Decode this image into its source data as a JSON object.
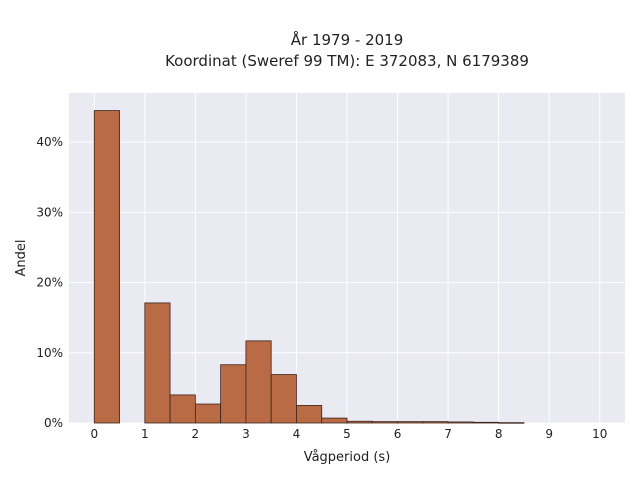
{
  "colors": {
    "plot_background": "#eaeaf2",
    "grid": "#ffffff",
    "bar_fill": "#b86b45",
    "bar_edge": "#3d241a"
  },
  "chart_data": {
    "type": "bar",
    "title_lines": [
      "År 1979 - 2019",
      "Koordinat (Sweref 99 TM): E 372083, N 6179389"
    ],
    "xlabel": "Vågperiod (s)",
    "ylabel": "Andel",
    "x_ticks": [
      "0",
      "1",
      "2",
      "3",
      "4",
      "5",
      "6",
      "7",
      "8",
      "9",
      "10"
    ],
    "y_ticks": [
      "0%",
      "10%",
      "20%",
      "30%",
      "40%"
    ],
    "xlim": [
      -0.5,
      10.5
    ],
    "ylim": [
      0,
      47
    ],
    "grid": true,
    "bin_width": 0.5,
    "bins": [
      {
        "x0": 0.0,
        "value": 44.5
      },
      {
        "x0": 0.5,
        "value": 0.0
      },
      {
        "x0": 1.0,
        "value": 17.1
      },
      {
        "x0": 1.5,
        "value": 4.0
      },
      {
        "x0": 2.0,
        "value": 2.7
      },
      {
        "x0": 2.5,
        "value": 8.3
      },
      {
        "x0": 3.0,
        "value": 11.7
      },
      {
        "x0": 3.5,
        "value": 6.9
      },
      {
        "x0": 4.0,
        "value": 2.5
      },
      {
        "x0": 4.5,
        "value": 0.7
      },
      {
        "x0": 5.0,
        "value": 0.25
      },
      {
        "x0": 5.5,
        "value": 0.2
      },
      {
        "x0": 6.0,
        "value": 0.2
      },
      {
        "x0": 6.5,
        "value": 0.2
      },
      {
        "x0": 7.0,
        "value": 0.15
      },
      {
        "x0": 7.5,
        "value": 0.1
      },
      {
        "x0": 8.0,
        "value": 0.05
      }
    ]
  }
}
